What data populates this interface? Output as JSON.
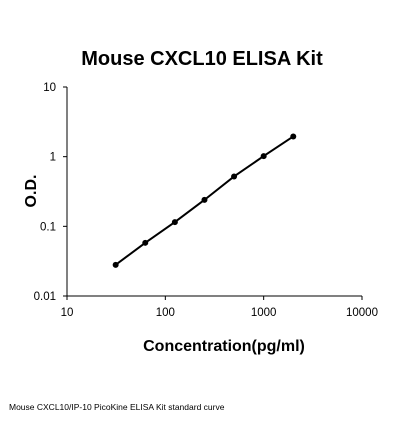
{
  "chart_data": {
    "type": "line",
    "title": "Mouse CXCL10 ELISA Kit",
    "xlabel": "Concentration(pg/ml)",
    "ylabel": "O.D.",
    "x_scale": "log",
    "y_scale": "log",
    "xlim": [
      10,
      10000
    ],
    "ylim": [
      0.01,
      10
    ],
    "x_ticks": [
      "10",
      "100",
      "1000",
      "10000"
    ],
    "y_ticks": [
      "0.01",
      "0.1",
      "1",
      "10"
    ],
    "x_tick_values": [
      10,
      100,
      1000,
      10000
    ],
    "y_tick_values": [
      0.01,
      0.1,
      1,
      10
    ],
    "grid": false,
    "series": [
      {
        "x": [
          31.25,
          62.5,
          125,
          250,
          500,
          1000,
          2000
        ],
        "y": [
          0.028,
          0.058,
          0.115,
          0.24,
          0.52,
          1.02,
          1.95
        ]
      }
    ],
    "colors": {
      "line": "#000000",
      "marker": "#000000",
      "axis": "#000000"
    }
  },
  "caption": "Mouse CXCL10/IP-10 PicoKine ELISA Kit standard curve"
}
